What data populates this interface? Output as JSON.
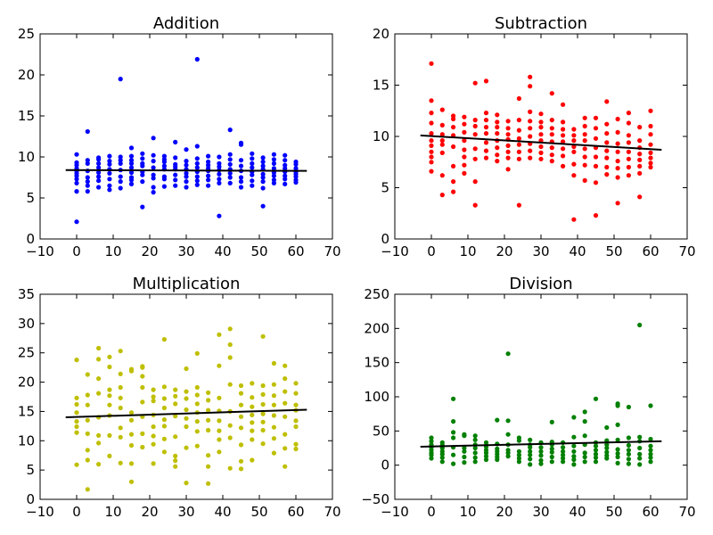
{
  "chart_data": [
    {
      "type": "scatter",
      "title": "Addition",
      "xlim": [
        -10,
        70
      ],
      "ylim": [
        0,
        25
      ],
      "xticks": [
        -10,
        0,
        10,
        20,
        30,
        40,
        50,
        60,
        70
      ],
      "yticks": [
        0,
        5,
        10,
        15,
        20,
        25
      ],
      "color": "#0000ff",
      "x": [
        0,
        0,
        0,
        0,
        0,
        0,
        0,
        0,
        0,
        0,
        0,
        3,
        3,
        3,
        3,
        3,
        3,
        3,
        3,
        6,
        6,
        6,
        6,
        6,
        6,
        6,
        6,
        9,
        9,
        9,
        9,
        9,
        9,
        9,
        9,
        12,
        12,
        12,
        12,
        12,
        12,
        12,
        12,
        15,
        15,
        15,
        15,
        15,
        15,
        15,
        15,
        15,
        18,
        18,
        18,
        18,
        18,
        18,
        18,
        18,
        21,
        21,
        21,
        21,
        21,
        21,
        21,
        21,
        24,
        24,
        24,
        24,
        24,
        24,
        24,
        24,
        27,
        27,
        27,
        27,
        27,
        27,
        27,
        27,
        30,
        30,
        30,
        30,
        30,
        30,
        30,
        30,
        33,
        33,
        33,
        33,
        33,
        33,
        33,
        33,
        33,
        36,
        36,
        36,
        36,
        36,
        36,
        36,
        36,
        39,
        39,
        39,
        39,
        39,
        39,
        39,
        39,
        42,
        42,
        42,
        42,
        42,
        42,
        42,
        42,
        45,
        45,
        45,
        45,
        45,
        45,
        45,
        45,
        48,
        48,
        48,
        48,
        48,
        48,
        48,
        48,
        51,
        51,
        51,
        51,
        51,
        51,
        51,
        51,
        51,
        54,
        54,
        54,
        54,
        54,
        54,
        54,
        54,
        57,
        57,
        57,
        57,
        57,
        57,
        57,
        57,
        60,
        60,
        60,
        60,
        60,
        60,
        60,
        60
      ],
      "y": [
        2.1,
        5.8,
        6.8,
        7.3,
        7.7,
        8.0,
        8.3,
        8.6,
        9.0,
        9.3,
        10.3,
        5.8,
        6.5,
        7.0,
        7.5,
        8.3,
        9.2,
        9.6,
        13.1,
        6.3,
        7.1,
        7.6,
        8.1,
        8.7,
        9.2,
        9.7,
        9.9,
        6.0,
        6.5,
        7.3,
        8.0,
        8.5,
        9.1,
        9.5,
        10.1,
        6.2,
        7.0,
        7.6,
        8.4,
        9.2,
        9.6,
        10.0,
        19.5,
        6.7,
        7.2,
        7.5,
        8.1,
        8.7,
        9.2,
        9.6,
        10.1,
        11.1,
        3.9,
        7.0,
        7.8,
        8.2,
        8.9,
        9.2,
        9.8,
        10.4,
        5.7,
        6.3,
        7.4,
        7.8,
        8.7,
        9.5,
        10.2,
        12.3,
        6.4,
        7.3,
        7.6,
        8.5,
        8.9,
        9.4,
        9.7,
        10.1,
        6.5,
        7.2,
        7.8,
        8.5,
        8.8,
        9.1,
        9.9,
        11.8,
        6.3,
        7.0,
        7.6,
        8.0,
        8.5,
        9.0,
        9.5,
        10.9,
        6.6,
        7.1,
        7.6,
        8.2,
        8.7,
        9.2,
        9.8,
        11.3,
        21.9,
        6.5,
        7.2,
        7.7,
        8.3,
        8.6,
        9.0,
        9.4,
        10.1,
        2.8,
        6.8,
        7.3,
        7.9,
        8.4,
        8.8,
        9.2,
        10.0,
        6.8,
        7.5,
        8.0,
        8.5,
        9.1,
        9.7,
        10.3,
        13.3,
        6.3,
        7.0,
        7.5,
        8.3,
        8.9,
        9.6,
        11.5,
        11.7,
        6.5,
        7.1,
        7.8,
        8.2,
        8.7,
        9.2,
        9.8,
        10.4,
        4.0,
        6.2,
        7.0,
        7.5,
        7.9,
        8.5,
        8.9,
        9.4,
        9.9,
        6.8,
        7.2,
        7.7,
        8.1,
        8.6,
        9.2,
        9.7,
        10.3,
        6.7,
        7.3,
        7.7,
        8.2,
        8.6,
        9.0,
        9.6,
        10.2,
        6.9,
        7.2,
        7.6,
        7.9,
        8.2,
        8.6,
        9.1,
        9.4
      ],
      "fit_line": {
        "x": [
          -3,
          63
        ],
        "y": [
          8.4,
          8.3
        ]
      }
    },
    {
      "type": "scatter",
      "title": "Subtraction",
      "xlim": [
        -10,
        70
      ],
      "ylim": [
        0,
        20
      ],
      "xticks": [
        -10,
        0,
        10,
        20,
        30,
        40,
        50,
        60,
        70
      ],
      "yticks": [
        0,
        5,
        10,
        15,
        20
      ],
      "color": "#ff0000",
      "x": [
        0,
        0,
        0,
        0,
        0,
        0,
        0,
        0,
        0,
        0,
        0,
        3,
        3,
        3,
        3,
        3,
        3,
        3,
        3,
        6,
        6,
        6,
        6,
        6,
        6,
        6,
        6,
        9,
        9,
        9,
        9,
        9,
        9,
        9,
        9,
        12,
        12,
        12,
        12,
        12,
        12,
        12,
        12,
        15,
        15,
        15,
        15,
        15,
        15,
        15,
        15,
        18,
        18,
        18,
        18,
        18,
        18,
        18,
        18,
        21,
        21,
        21,
        21,
        21,
        21,
        21,
        21,
        24,
        24,
        24,
        24,
        24,
        24,
        24,
        24,
        27,
        27,
        27,
        27,
        27,
        27,
        27,
        27,
        27,
        30,
        30,
        30,
        30,
        30,
        30,
        30,
        30,
        33,
        33,
        33,
        33,
        33,
        33,
        33,
        33,
        36,
        36,
        36,
        36,
        36,
        36,
        36,
        36,
        39,
        39,
        39,
        39,
        39,
        39,
        39,
        39,
        42,
        42,
        42,
        42,
        42,
        42,
        42,
        42,
        45,
        45,
        45,
        45,
        45,
        45,
        45,
        45,
        48,
        48,
        48,
        48,
        48,
        48,
        48,
        48,
        51,
        51,
        51,
        51,
        51,
        51,
        51,
        51,
        54,
        54,
        54,
        54,
        54,
        54,
        54,
        54,
        57,
        57,
        57,
        57,
        57,
        57,
        57,
        57,
        60,
        60,
        60,
        60,
        60,
        60,
        60,
        60
      ],
      "y": [
        6.6,
        7.5,
        8.0,
        8.5,
        9.1,
        9.6,
        10.3,
        11.3,
        12.3,
        13.5,
        17.1,
        4.3,
        6.2,
        8.4,
        9.2,
        9.6,
        10.2,
        11.1,
        12.6,
        4.6,
        5.6,
        7.1,
        9.0,
        10.1,
        10.9,
        11.7,
        12.0,
        6.4,
        7.2,
        8.0,
        8.7,
        9.6,
        10.4,
        11.2,
        11.9,
        3.3,
        5.6,
        7.8,
        8.8,
        10.2,
        11.0,
        11.6,
        15.2,
        7.9,
        8.6,
        9.4,
        10.3,
        10.9,
        11.6,
        12.3,
        15.4,
        7.6,
        8.2,
        8.9,
        9.6,
        10.3,
        10.9,
        11.4,
        12.1,
        6.8,
        7.9,
        8.5,
        9.1,
        9.7,
        10.2,
        10.8,
        11.5,
        3.3,
        7.8,
        8.5,
        9.2,
        9.8,
        10.6,
        11.6,
        13.7,
        7.9,
        8.6,
        9.3,
        10.0,
        10.8,
        11.5,
        12.4,
        14.9,
        15.8,
        7.8,
        8.4,
        9.0,
        9.6,
        10.2,
        10.9,
        11.4,
        12.2,
        7.6,
        8.2,
        8.9,
        9.5,
        10.2,
        10.8,
        11.6,
        14.2,
        7.1,
        8.1,
        8.8,
        9.5,
        10.1,
        10.7,
        11.4,
        13.1,
        1.9,
        6.2,
        7.3,
        8.5,
        9.0,
        9.6,
        10.1,
        10.7,
        5.7,
        7.2,
        8.0,
        8.8,
        9.6,
        10.2,
        11.0,
        11.8,
        2.3,
        5.5,
        7.1,
        8.0,
        8.9,
        9.8,
        10.8,
        11.8,
        6.3,
        7.0,
        7.9,
        8.6,
        9.4,
        10.3,
        11.2,
        13.4,
        3.5,
        6.0,
        6.9,
        7.6,
        8.5,
        9.3,
        10.4,
        11.7,
        6.2,
        7.0,
        7.8,
        8.5,
        9.4,
        10.1,
        11.3,
        12.3,
        4.1,
        6.4,
        7.1,
        7.7,
        8.3,
        8.9,
        9.6,
        10.9,
        7.0,
        7.4,
        7.9,
        8.4,
        9.2,
        10.2,
        11.0,
        12.5
      ],
      "fit_line": {
        "x": [
          -3,
          63
        ],
        "y": [
          10.1,
          8.7
        ]
      }
    },
    {
      "type": "scatter",
      "title": "Multiplication",
      "xlim": [
        -10,
        70
      ],
      "ylim": [
        0,
        35
      ],
      "xticks": [
        -10,
        0,
        10,
        20,
        30,
        40,
        50,
        60,
        70
      ],
      "yticks": [
        0,
        5,
        10,
        15,
        20,
        25,
        30,
        35
      ],
      "color": "#bfbf00",
      "x": [
        0,
        0,
        0,
        0,
        0,
        0,
        0,
        0,
        3,
        3,
        3,
        3,
        3,
        3,
        3,
        3,
        6,
        6,
        6,
        6,
        6,
        6,
        6,
        6,
        9,
        9,
        9,
        9,
        9,
        9,
        9,
        9,
        12,
        12,
        12,
        12,
        12,
        12,
        12,
        12,
        15,
        15,
        15,
        15,
        15,
        15,
        15,
        15,
        18,
        18,
        18,
        18,
        18,
        18,
        18,
        18,
        21,
        21,
        21,
        21,
        21,
        21,
        21,
        21,
        24,
        24,
        24,
        24,
        24,
        24,
        24,
        24,
        27,
        27,
        27,
        27,
        27,
        27,
        27,
        27,
        30,
        30,
        30,
        30,
        30,
        30,
        30,
        30,
        33,
        33,
        33,
        33,
        33,
        33,
        33,
        33,
        36,
        36,
        36,
        36,
        36,
        36,
        36,
        36,
        39,
        39,
        39,
        39,
        39,
        39,
        39,
        39,
        42,
        42,
        42,
        42,
        42,
        42,
        42,
        42,
        45,
        45,
        45,
        45,
        45,
        45,
        45,
        45,
        48,
        48,
        48,
        48,
        48,
        48,
        48,
        48,
        51,
        51,
        51,
        51,
        51,
        51,
        51,
        51,
        54,
        54,
        54,
        54,
        54,
        54,
        54,
        54,
        57,
        57,
        57,
        57,
        57,
        57,
        57,
        57,
        60,
        60,
        60,
        60,
        60,
        60,
        60,
        60
      ],
      "y": [
        5.9,
        11.4,
        12.4,
        13.3,
        14.8,
        16.2,
        17.3,
        23.8,
        1.7,
        6.7,
        8.4,
        11.2,
        13.5,
        16.1,
        17.8,
        21.3,
        6.0,
        9.6,
        10.9,
        14.0,
        18.1,
        20.6,
        23.9,
        25.8,
        7.4,
        10.9,
        14.3,
        16.1,
        17.7,
        18.7,
        22.6,
        24.3,
        6.2,
        10.6,
        12.2,
        15.6,
        17.3,
        19.1,
        21.4,
        25.3,
        3.0,
        6.1,
        9.2,
        11.1,
        13.5,
        14.8,
        21.9,
        22.2,
        8.9,
        11.2,
        14.1,
        16.6,
        19.1,
        21.0,
        22.5,
        22.7,
        6.1,
        9.4,
        10.8,
        12.4,
        14.4,
        16.8,
        17.5,
        18.7,
        8.1,
        10.3,
        12.5,
        13.6,
        15.6,
        17.2,
        19.2,
        27.3,
        5.6,
        6.6,
        7.4,
        10.7,
        14.2,
        16.3,
        17.6,
        18.7,
        2.8,
        8.8,
        12.4,
        13.8,
        15.3,
        17.2,
        18.4,
        22.3,
        9.1,
        11.6,
        13.3,
        14.8,
        16.3,
        17.8,
        19.1,
        24.9,
        2.7,
        5.6,
        7.5,
        11.8,
        13.5,
        15.2,
        16.9,
        18.2,
        8.1,
        10.2,
        11.7,
        13.4,
        15.1,
        17.3,
        22.8,
        28.1,
        5.3,
        10.5,
        12.6,
        15.0,
        19.6,
        24.2,
        26.4,
        29.1,
        5.2,
        6.5,
        9.3,
        12.2,
        14.1,
        16.1,
        18.1,
        19.4,
        6.7,
        10.2,
        11.7,
        13.1,
        14.4,
        15.8,
        17.4,
        19.8,
        9.5,
        11.8,
        13.2,
        14.6,
        16.2,
        17.9,
        19.4,
        27.8,
        7.9,
        10.4,
        12.3,
        14.3,
        16.1,
        17.7,
        19.6,
        23.2,
        5.6,
        8.7,
        11.1,
        14.1,
        16.4,
        18.4,
        20.6,
        22.8,
        8.6,
        9.4,
        12.4,
        13.4,
        15.2,
        16.1,
        18.1,
        19.8
      ],
      "fit_line": {
        "x": [
          -3,
          63
        ],
        "y": [
          14.0,
          15.3
        ]
      }
    },
    {
      "type": "scatter",
      "title": "Division",
      "xlim": [
        -10,
        70
      ],
      "ylim": [
        -50,
        250
      ],
      "xticks": [
        -10,
        0,
        10,
        20,
        30,
        40,
        50,
        60,
        70
      ],
      "yticks": [
        -50,
        0,
        50,
        100,
        150,
        200,
        250
      ],
      "color": "#008000",
      "x": [
        0,
        0,
        0,
        0,
        0,
        0,
        0,
        0,
        3,
        3,
        3,
        3,
        3,
        3,
        3,
        6,
        6,
        6,
        6,
        6,
        6,
        6,
        9,
        9,
        9,
        9,
        9,
        9,
        12,
        12,
        12,
        12,
        12,
        12,
        12,
        15,
        15,
        15,
        15,
        15,
        15,
        18,
        18,
        18,
        18,
        18,
        18,
        18,
        21,
        21,
        21,
        21,
        21,
        21,
        21,
        24,
        24,
        24,
        24,
        24,
        24,
        27,
        27,
        27,
        27,
        27,
        27,
        27,
        30,
        30,
        30,
        30,
        30,
        30,
        33,
        33,
        33,
        33,
        33,
        33,
        33,
        36,
        36,
        36,
        36,
        36,
        36,
        39,
        39,
        39,
        39,
        39,
        39,
        39,
        42,
        42,
        42,
        42,
        42,
        42,
        42,
        45,
        45,
        45,
        45,
        45,
        45,
        45,
        48,
        48,
        48,
        48,
        48,
        48,
        48,
        51,
        51,
        51,
        51,
        51,
        51,
        51,
        51,
        54,
        54,
        54,
        54,
        54,
        54,
        54,
        57,
        57,
        57,
        57,
        57,
        57,
        57,
        60,
        60,
        60,
        60,
        60,
        60,
        60
      ],
      "y": [
        10,
        15,
        18,
        22,
        26,
        30,
        35,
        40,
        5,
        11,
        16,
        20,
        25,
        29,
        33,
        2,
        15,
        26,
        40,
        48,
        64,
        97,
        4,
        12,
        20,
        25,
        43,
        45,
        5,
        11,
        18,
        25,
        30,
        37,
        43,
        8,
        13,
        18,
        22,
        27,
        33,
        8,
        12,
        16,
        20,
        24,
        31,
        66,
        13,
        18,
        22,
        30,
        45,
        65,
        163,
        5,
        10,
        15,
        20,
        36,
        40,
        1,
        9,
        15,
        20,
        26,
        30,
        37,
        2,
        7,
        14,
        20,
        26,
        33,
        5,
        12,
        19,
        24,
        30,
        34,
        63,
        5,
        10,
        15,
        20,
        26,
        33,
        1,
        8,
        13,
        20,
        28,
        41,
        70,
        5,
        12,
        18,
        30,
        43,
        64,
        78,
        5,
        11,
        16,
        22,
        28,
        33,
        97,
        10,
        14,
        19,
        25,
        30,
        36,
        55,
        3,
        12,
        17,
        23,
        37,
        59,
        87,
        90,
        2,
        9,
        16,
        22,
        29,
        40,
        85,
        1,
        10,
        16,
        25,
        35,
        41,
        205,
        5,
        11,
        16,
        22,
        28,
        38,
        87
      ],
      "fit_line": {
        "x": [
          -3,
          63
        ],
        "y": [
          27,
          35
        ]
      }
    }
  ]
}
